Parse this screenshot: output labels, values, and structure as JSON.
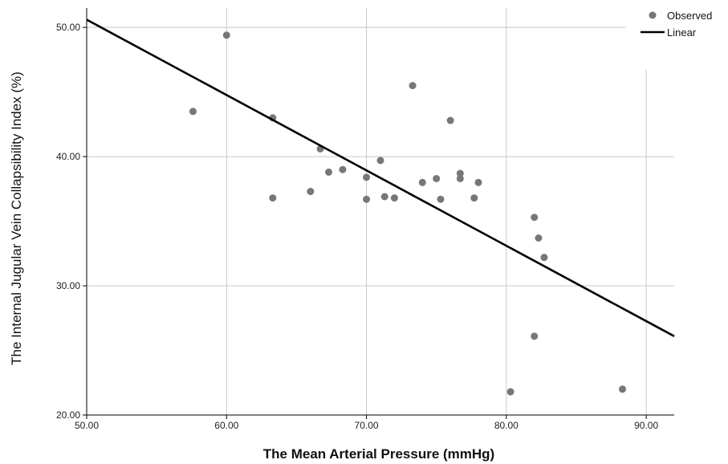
{
  "chart_data": {
    "type": "scatter",
    "xlabel": "The Mean Arterial Pressure (mmHg)",
    "ylabel": "The Internal Jugular Vein Collapsibility Index (%)",
    "xlim": [
      50,
      92
    ],
    "ylim": [
      20,
      51.5
    ],
    "x_ticks": [
      "50.00",
      "60.00",
      "70.00",
      "80.00",
      "90.00"
    ],
    "y_ticks": [
      "20.00",
      "30.00",
      "40.00",
      "50.00"
    ],
    "grid": true,
    "legend_position": "top-right",
    "colors": {
      "points": "#777777",
      "line": "#000000",
      "grid": "#c8c8c8"
    },
    "series": [
      {
        "name": "Observed",
        "points": [
          [
            57.6,
            43.5
          ],
          [
            60.0,
            49.4
          ],
          [
            63.3,
            43.0
          ],
          [
            63.3,
            36.8
          ],
          [
            66.0,
            37.3
          ],
          [
            66.7,
            40.6
          ],
          [
            67.3,
            38.8
          ],
          [
            68.3,
            39.0
          ],
          [
            70.0,
            38.4
          ],
          [
            70.0,
            36.7
          ],
          [
            71.0,
            39.7
          ],
          [
            71.3,
            36.9
          ],
          [
            72.0,
            36.8
          ],
          [
            73.3,
            45.5
          ],
          [
            74.0,
            38.0
          ],
          [
            75.0,
            38.3
          ],
          [
            75.3,
            36.7
          ],
          [
            76.0,
            42.8
          ],
          [
            76.7,
            38.7
          ],
          [
            76.7,
            38.3
          ],
          [
            77.7,
            36.8
          ],
          [
            78.0,
            38.0
          ],
          [
            80.3,
            21.8
          ],
          [
            82.0,
            35.3
          ],
          [
            82.0,
            26.1
          ],
          [
            82.3,
            33.7
          ],
          [
            82.7,
            32.2
          ],
          [
            88.3,
            22.0
          ]
        ]
      },
      {
        "name": "Linear",
        "line": [
          [
            50,
            50.6
          ],
          [
            92,
            26.1
          ]
        ]
      }
    ]
  }
}
